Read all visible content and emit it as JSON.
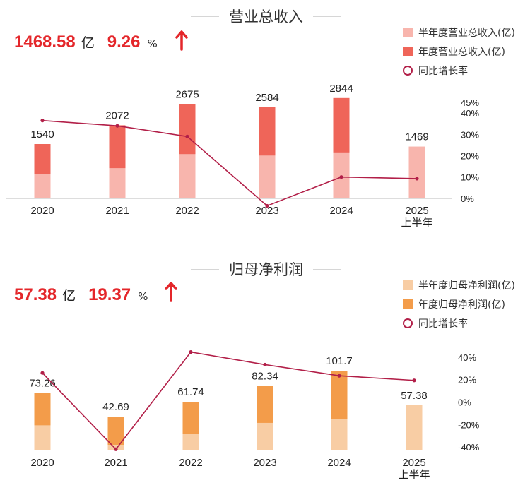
{
  "charts": [
    {
      "id": "revenue",
      "title": "营业总收入",
      "headline": {
        "value": "1468.58",
        "unit": "亿",
        "growth": "9.26",
        "growth_unit": "%",
        "direction": "up"
      },
      "legend": [
        "半年度营业总收入(亿)",
        "年度营业总收入(亿)",
        "同比增长率"
      ],
      "colors": {
        "half": "#f8b5ad",
        "annual": "#ef6559",
        "line": "#b21f48",
        "accent": "#e4262a"
      },
      "chart_data": {
        "type": "bar",
        "categories": [
          "2020",
          "2021",
          "2022",
          "2023",
          "2024",
          "2025"
        ],
        "category_sublabels": [
          "",
          "",
          "",
          "",
          "",
          "上半年"
        ],
        "series": [
          {
            "name": "半年度营业总收入(亿)",
            "values": [
              695,
              858,
              1256,
              1215,
              1304,
              1469
            ]
          },
          {
            "name": "年度营业总收入(亿)",
            "values": [
              1540,
              2072,
              2675,
              2584,
              2844,
              null
            ]
          },
          {
            "name": "同比增长率",
            "type": "line",
            "axis": "right",
            "values": [
              36.5,
              34.0,
              29.0,
              -3.5,
              10.0,
              9.26
            ]
          }
        ],
        "bar_labels": [
          "1540",
          "2072",
          "2675",
          "2584",
          "2844",
          "1469"
        ],
        "ylim": [
          0,
          3000
        ],
        "y2lim": [
          -5,
          45
        ],
        "y2_ticks": [
          0,
          10,
          20,
          30,
          40,
          45
        ],
        "y2_tick_labels": [
          "0%",
          "10%",
          "20%",
          "30%",
          "40%",
          "45%"
        ]
      }
    },
    {
      "id": "profit",
      "title": "归母净利润",
      "headline": {
        "value": "57.38",
        "unit": "亿",
        "growth": "19.37",
        "growth_unit": "%",
        "direction": "up"
      },
      "legend": [
        "半年度归母净利润(亿)",
        "年度归母净利润(亿)",
        "同比增长率"
      ],
      "colors": {
        "half": "#f8cda4",
        "annual": "#f39c4a",
        "line": "#b21f48",
        "accent": "#e4262a"
      },
      "chart_data": {
        "type": "bar",
        "categories": [
          "2020",
          "2021",
          "2022",
          "2023",
          "2024",
          "2025"
        ],
        "category_sublabels": [
          "",
          "",
          "",
          "",
          "",
          "上半年"
        ],
        "series": [
          {
            "name": "半年度归母净利润(亿)",
            "values": [
              31.5,
              6.4,
              20.8,
              34.6,
              40.0,
              57.38
            ]
          },
          {
            "name": "年度归母净利润(亿)",
            "values": [
              73.26,
              42.69,
              61.74,
              82.34,
              101.7,
              null
            ]
          },
          {
            "name": "同比增长率",
            "type": "line",
            "axis": "right",
            "values": [
              26,
              -42,
              44.6,
              33.4,
              23.5,
              19.37
            ]
          }
        ],
        "bar_labels": [
          "73.26",
          "42.69",
          "61.74",
          "82.34",
          "101.7",
          "57.38"
        ],
        "ylim": [
          0,
          120
        ],
        "y2lim": [
          -50,
          45
        ],
        "y2_ticks": [
          -40,
          -20,
          0,
          20,
          40
        ],
        "y2_tick_labels": [
          "-40%",
          "-20%",
          "0%",
          "20%",
          "40%"
        ]
      }
    }
  ]
}
